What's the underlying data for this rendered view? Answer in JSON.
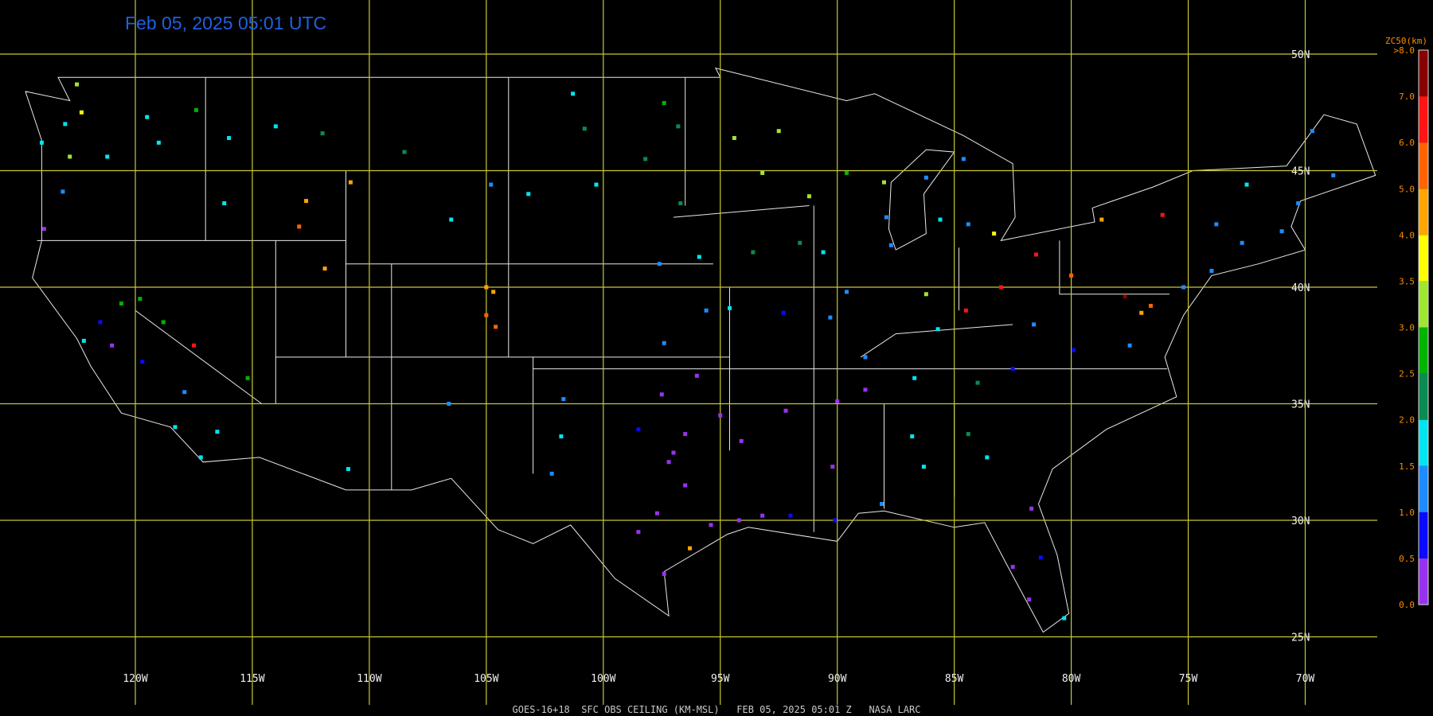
{
  "title": "Feb 05, 2025 05:01 UTC",
  "footer": "GOES-16+18  SFC OBS CEILING (KM-MSL)   FEB 05, 2025 05:01 Z   NASA LARC",
  "lat_ticks": [
    {
      "value": 50,
      "label": "50N"
    },
    {
      "value": 45,
      "label": "45N"
    },
    {
      "value": 40,
      "label": "40N"
    },
    {
      "value": 35,
      "label": "35N"
    },
    {
      "value": 30,
      "label": "30N"
    },
    {
      "value": 25,
      "label": "25N"
    }
  ],
  "lon_ticks": [
    {
      "value": -120,
      "label": "120W"
    },
    {
      "value": -115,
      "label": "115W"
    },
    {
      "value": -110,
      "label": "110W"
    },
    {
      "value": -105,
      "label": "105W"
    },
    {
      "value": -100,
      "label": "100W"
    },
    {
      "value": -95,
      "label": "95W"
    },
    {
      "value": -90,
      "label": "90W"
    },
    {
      "value": -85,
      "label": "85W"
    },
    {
      "value": -80,
      "label": "80W"
    },
    {
      "value": -75,
      "label": "75W"
    },
    {
      "value": -70,
      "label": "70W"
    }
  ],
  "colorbar": {
    "title": "ZC50(km)",
    "ticks": [
      {
        "value": 0,
        "label": "0.0"
      },
      {
        "value": 0.5,
        "label": "0.5"
      },
      {
        "value": 1,
        "label": "1.0"
      },
      {
        "value": 1.5,
        "label": "1.5"
      },
      {
        "value": 2,
        "label": "2.0"
      },
      {
        "value": 2.5,
        "label": "2.5"
      },
      {
        "value": 3,
        "label": "3.0"
      },
      {
        "value": 3.5,
        "label": "3.5"
      },
      {
        "value": 4,
        "label": "4.0"
      },
      {
        "value": 5,
        "label": "5.0"
      },
      {
        "value": 6,
        "label": "6.0"
      },
      {
        "value": 7,
        "label": "7.0"
      },
      {
        "value": 8,
        "label": ">8.0"
      }
    ],
    "colors": [
      "#9932ee",
      "#0a0aff",
      "#1e8cff",
      "#00e6f0",
      "#0a8c50",
      "#00b400",
      "#a0e632",
      "#ffff00",
      "#ffa500",
      "#ff6400",
      "#ff1414",
      "#8b0000"
    ]
  },
  "stations": [
    {
      "lon": -122.3,
      "lat": 47.5,
      "value": 3.5
    },
    {
      "lon": -122.5,
      "lat": 48.7,
      "value": 3.0
    },
    {
      "lon": -123,
      "lat": 47,
      "value": 1.5
    },
    {
      "lon": -124,
      "lat": 46.2,
      "value": 1.5
    },
    {
      "lon": -123.1,
      "lat": 44.1,
      "value": 1.0
    },
    {
      "lon": -122.8,
      "lat": 45.6,
      "value": 3.0
    },
    {
      "lon": -121.2,
      "lat": 45.6,
      "value": 1.5
    },
    {
      "lon": -119,
      "lat": 46.2,
      "value": 1.5
    },
    {
      "lon": -117.4,
      "lat": 47.6,
      "value": 2.5
    },
    {
      "lon": -116,
      "lat": 46.4,
      "value": 1.5
    },
    {
      "lon": -119.5,
      "lat": 47.3,
      "value": 1.5
    },
    {
      "lon": -123.9,
      "lat": 42.5,
      "value": 0.3
    },
    {
      "lon": -122.2,
      "lat": 37.7,
      "value": 1.5
    },
    {
      "lon": -121.5,
      "lat": 38.5,
      "value": 0.8
    },
    {
      "lon": -120.6,
      "lat": 39.3,
      "value": 2.8
    },
    {
      "lon": -119.8,
      "lat": 39.5,
      "value": 2.8
    },
    {
      "lon": -121,
      "lat": 37.5,
      "value": 0.3
    },
    {
      "lon": -119.7,
      "lat": 36.8,
      "value": 0.8
    },
    {
      "lon": -118.3,
      "lat": 34,
      "value": 1.5
    },
    {
      "lon": -117.2,
      "lat": 32.7,
      "value": 1.5
    },
    {
      "lon": -116.5,
      "lat": 33.8,
      "value": 1.5
    },
    {
      "lon": -117.9,
      "lat": 35.5,
      "value": 1.3
    },
    {
      "lon": -118.8,
      "lat": 38.5,
      "value": 2.6
    },
    {
      "lon": -117.5,
      "lat": 37.5,
      "value": 6.5
    },
    {
      "lon": -116.2,
      "lat": 43.6,
      "value": 1.5
    },
    {
      "lon": -114,
      "lat": 46.9,
      "value": 1.8
    },
    {
      "lon": -112,
      "lat": 46.6,
      "value": 2.3
    },
    {
      "lon": -108.5,
      "lat": 45.8,
      "value": 2.3
    },
    {
      "lon": -104.8,
      "lat": 44.4,
      "value": 1.3
    },
    {
      "lon": -106.5,
      "lat": 42.9,
      "value": 1.8
    },
    {
      "lon": -111.9,
      "lat": 40.8,
      "value": 4.3
    },
    {
      "lon": -112.7,
      "lat": 43.7,
      "value": 4.5
    },
    {
      "lon": -110.8,
      "lat": 44.5,
      "value": 4.8
    },
    {
      "lon": -105,
      "lat": 40,
      "value": 4.5
    },
    {
      "lon": -104.7,
      "lat": 39.8,
      "value": 4.8
    },
    {
      "lon": -105,
      "lat": 38.8,
      "value": 5.2
    },
    {
      "lon": -104.6,
      "lat": 38.3,
      "value": 5.0
    },
    {
      "lon": -106.6,
      "lat": 35,
      "value": 1.3
    },
    {
      "lon": -110.9,
      "lat": 32.2,
      "value": 1.5
    },
    {
      "lon": -115.2,
      "lat": 36.1,
      "value": 2.6
    },
    {
      "lon": -113,
      "lat": 42.6,
      "value": 5.5
    },
    {
      "lon": -100.8,
      "lat": 46.8,
      "value": 2.2
    },
    {
      "lon": -96.8,
      "lat": 46.9,
      "value": 2.3
    },
    {
      "lon": -98.2,
      "lat": 45.5,
      "value": 2.3
    },
    {
      "lon": -103.2,
      "lat": 44,
      "value": 1.8
    },
    {
      "lon": -96.7,
      "lat": 43.6,
      "value": 2.4
    },
    {
      "lon": -101.3,
      "lat": 48.3,
      "value": 1.8
    },
    {
      "lon": -97.4,
      "lat": 47.9,
      "value": 2.8
    },
    {
      "lon": -100.3,
      "lat": 44.4,
      "value": 1.5
    },
    {
      "lon": -93.2,
      "lat": 44.9,
      "value": 3.2
    },
    {
      "lon": -92.5,
      "lat": 46.7,
      "value": 3.3
    },
    {
      "lon": -91.2,
      "lat": 43.9,
      "value": 3.1
    },
    {
      "lon": -89.6,
      "lat": 44.9,
      "value": 2.5
    },
    {
      "lon": -88,
      "lat": 44.5,
      "value": 3.2
    },
    {
      "lon": -94.4,
      "lat": 46.4,
      "value": 3.1
    },
    {
      "lon": -87.9,
      "lat": 43,
      "value": 1.0
    },
    {
      "lon": -97.6,
      "lat": 41,
      "value": 1.3
    },
    {
      "lon": -95.9,
      "lat": 41.3,
      "value": 1.8
    },
    {
      "lon": -93.6,
      "lat": 41.5,
      "value": 2.2
    },
    {
      "lon": -91.6,
      "lat": 41.9,
      "value": 2.4
    },
    {
      "lon": -90.6,
      "lat": 41.5,
      "value": 1.8
    },
    {
      "lon": -87.7,
      "lat": 41.8,
      "value": 1.0
    },
    {
      "lon": -89.6,
      "lat": 39.8,
      "value": 1.2
    },
    {
      "lon": -86.2,
      "lat": 39.7,
      "value": 3.0
    },
    {
      "lon": -84.5,
      "lat": 39,
      "value": 6.3
    },
    {
      "lon": -83,
      "lat": 40,
      "value": 6.4
    },
    {
      "lon": -81.5,
      "lat": 41.4,
      "value": 6.2
    },
    {
      "lon": -84.4,
      "lat": 42.7,
      "value": 1.2
    },
    {
      "lon": -83.3,
      "lat": 42.3,
      "value": 3.5
    },
    {
      "lon": -85.6,
      "lat": 42.9,
      "value": 1.5
    },
    {
      "lon": -86.2,
      "lat": 44.7,
      "value": 1.3
    },
    {
      "lon": -84.6,
      "lat": 45.5,
      "value": 1.3
    },
    {
      "lon": -97.4,
      "lat": 37.6,
      "value": 1.0
    },
    {
      "lon": -95.6,
      "lat": 39,
      "value": 1.2
    },
    {
      "lon": -94.6,
      "lat": 39.1,
      "value": 1.5
    },
    {
      "lon": -92.3,
      "lat": 38.9,
      "value": 0.8
    },
    {
      "lon": -90.3,
      "lat": 38.7,
      "value": 1.0
    },
    {
      "lon": -88.8,
      "lat": 37,
      "value": 1.0
    },
    {
      "lon": -86.7,
      "lat": 36.1,
      "value": 1.7
    },
    {
      "lon": -85.7,
      "lat": 38.2,
      "value": 1.5
    },
    {
      "lon": -84,
      "lat": 35.9,
      "value": 2.3
    },
    {
      "lon": -82.5,
      "lat": 36.5,
      "value": 0.8
    },
    {
      "lon": -81.6,
      "lat": 38.4,
      "value": 1.2
    },
    {
      "lon": -80,
      "lat": 40.5,
      "value": 5.5
    },
    {
      "lon": -77.7,
      "lat": 39.6,
      "value": 7.5
    },
    {
      "lon": -76.6,
      "lat": 39.2,
      "value": 5.5
    },
    {
      "lon": -77,
      "lat": 38.9,
      "value": 4.5
    },
    {
      "lon": -75.2,
      "lat": 40,
      "value": 1.2
    },
    {
      "lon": -74,
      "lat": 40.7,
      "value": 1.3
    },
    {
      "lon": -76.1,
      "lat": 43.1,
      "value": 6.3
    },
    {
      "lon": -78.7,
      "lat": 42.9,
      "value": 4.3
    },
    {
      "lon": -73.8,
      "lat": 42.7,
      "value": 1.3
    },
    {
      "lon": -71,
      "lat": 42.4,
      "value": 1.3
    },
    {
      "lon": -72.7,
      "lat": 41.9,
      "value": 1.2
    },
    {
      "lon": -70.3,
      "lat": 43.6,
      "value": 1.3
    },
    {
      "lon": -72.5,
      "lat": 44.4,
      "value": 1.5
    },
    {
      "lon": -79.9,
      "lat": 37.3,
      "value": 0.8
    },
    {
      "lon": -77.5,
      "lat": 37.5,
      "value": 1.0
    },
    {
      "lon": -97.5,
      "lat": 35.4,
      "value": 0.3
    },
    {
      "lon": -96,
      "lat": 36.2,
      "value": 0.3
    },
    {
      "lon": -98.5,
      "lat": 33.9,
      "value": 0.8
    },
    {
      "lon": -97,
      "lat": 32.9,
      "value": 0.3
    },
    {
      "lon": -97.2,
      "lat": 32.5,
      "value": 0.3
    },
    {
      "lon": -96.5,
      "lat": 31.5,
      "value": 0.4
    },
    {
      "lon": -95.4,
      "lat": 29.8,
      "value": 0.3
    },
    {
      "lon": -94.2,
      "lat": 30,
      "value": 0.3
    },
    {
      "lon": -97.4,
      "lat": 27.7,
      "value": 0.3
    },
    {
      "lon": -98.5,
      "lat": 29.5,
      "value": 0.3
    },
    {
      "lon": -97.7,
      "lat": 30.3,
      "value": 0.3
    },
    {
      "lon": -93.2,
      "lat": 30.2,
      "value": 0.4
    },
    {
      "lon": -92,
      "lat": 30.2,
      "value": 0.8
    },
    {
      "lon": -90.1,
      "lat": 30,
      "value": 0.8
    },
    {
      "lon": -88.1,
      "lat": 30.7,
      "value": 1.2
    },
    {
      "lon": -86.8,
      "lat": 33.6,
      "value": 1.7
    },
    {
      "lon": -86.3,
      "lat": 32.3,
      "value": 1.5
    },
    {
      "lon": -84.4,
      "lat": 33.7,
      "value": 2.3
    },
    {
      "lon": -83.6,
      "lat": 32.7,
      "value": 1.6
    },
    {
      "lon": -90.2,
      "lat": 32.3,
      "value": 0.4
    },
    {
      "lon": -92.2,
      "lat": 34.7,
      "value": 0.3
    },
    {
      "lon": -94.1,
      "lat": 33.4,
      "value": 0.4
    },
    {
      "lon": -90,
      "lat": 35.1,
      "value": 0.3
    },
    {
      "lon": -88.8,
      "lat": 35.6,
      "value": 0.4
    },
    {
      "lon": -81.7,
      "lat": 30.5,
      "value": 0.4
    },
    {
      "lon": -82.5,
      "lat": 28,
      "value": 0.4
    },
    {
      "lon": -81.3,
      "lat": 28.4,
      "value": 0.8
    },
    {
      "lon": -80.3,
      "lat": 25.8,
      "value": 1.8
    },
    {
      "lon": -81.8,
      "lat": 26.6,
      "value": 0.3
    },
    {
      "lon": -101.7,
      "lat": 35.2,
      "value": 1.0
    },
    {
      "lon": -101.8,
      "lat": 33.6,
      "value": 1.5
    },
    {
      "lon": -102.2,
      "lat": 32,
      "value": 1.2
    },
    {
      "lon": -96.3,
      "lat": 28.8,
      "value": 4.8
    },
    {
      "lon": -95,
      "lat": 34.5,
      "value": 0.3
    },
    {
      "lon": -96.5,
      "lat": 33.7,
      "value": 0.3
    },
    {
      "lon": -68.8,
      "lat": 44.8,
      "value": 1.3
    },
    {
      "lon": -69.7,
      "lat": 46.7,
      "value": 1.2
    }
  ]
}
